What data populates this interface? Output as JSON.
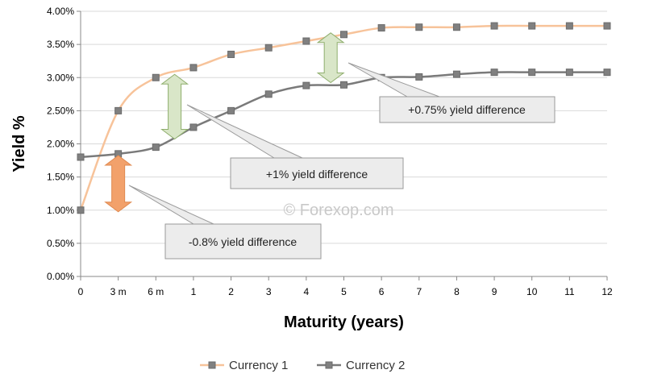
{
  "chart_data": {
    "type": "line",
    "title": "",
    "xlabel": "Maturity (years)",
    "ylabel": "Yield %",
    "categories": [
      "0",
      "3 m",
      "6 m",
      "1",
      "2",
      "3",
      "4",
      "5",
      "6",
      "7",
      "8",
      "9",
      "10",
      "11",
      "12"
    ],
    "y_ticks": [
      "0.00%",
      "0.50%",
      "1.00%",
      "1.50%",
      "2.00%",
      "2.50%",
      "3.00%",
      "3.50%",
      "4.00%"
    ],
    "ylim": [
      0,
      4
    ],
    "grid": "horizontal",
    "legend_position": "bottom",
    "series": [
      {
        "name": "Currency 1",
        "color": "#f7c39a",
        "marker_color": "#808080",
        "values": [
          1.0,
          2.5,
          3.0,
          3.15,
          3.35,
          3.45,
          3.55,
          3.65,
          3.75,
          3.76,
          3.76,
          3.78,
          3.78,
          3.78,
          3.78
        ]
      },
      {
        "name": "Currency 2",
        "color": "#7a7a7a",
        "marker_color": "#808080",
        "values": [
          1.8,
          1.85,
          1.95,
          2.25,
          2.5,
          2.75,
          2.88,
          2.89,
          3.0,
          3.01,
          3.05,
          3.08,
          3.08,
          3.08,
          3.08
        ]
      }
    ],
    "annotations": [
      {
        "text": "-0.8% yield difference",
        "arrow_color": "#f2a16b",
        "x_category": "3 m",
        "from_value": 1.0,
        "to_value": 1.8
      },
      {
        "text": "+1% yield difference",
        "arrow_color": "#d9e6c8",
        "x_category": "6 m",
        "from_value": 2.0,
        "to_value": 3.0
      },
      {
        "text": "+0.75% yield difference",
        "arrow_color": "#d9e6c8",
        "x_category": "5",
        "from_value": 2.9,
        "to_value": 3.6
      }
    ],
    "watermark": "© Forexop.com"
  }
}
